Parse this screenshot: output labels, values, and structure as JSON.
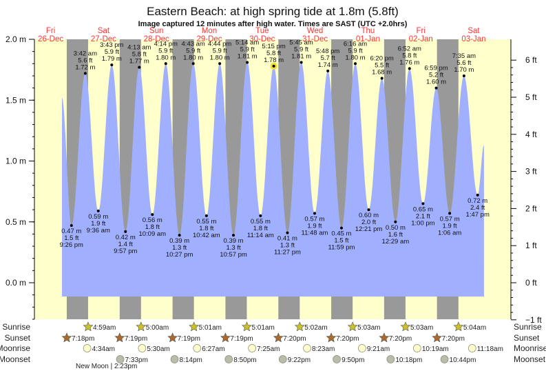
{
  "title": "Eastern Beach: at high  spring tide at 1.8m (5.8ft)",
  "subtitle": "Image captured 12 minutes after high water. Times are SAST (UTC +2.0hrs)",
  "colors": {
    "day": "#ffffcc",
    "night": "#999999",
    "tide": "#a0b0ff",
    "dayLabel": "#ff3333",
    "sunrise": "#c8c030",
    "sunset": "#a86a30",
    "moonrise": "#ffffcc",
    "moonset": "#bbbbaa",
    "highlight": "#f0e020"
  },
  "row_labels": {
    "sunrise": "Sunrise",
    "sunset": "Sunset",
    "moonrise": "Moonrise",
    "moonset": "Moonset"
  },
  "new_moon": "New Moon | 2:23pm",
  "chart_data": {
    "type": "area",
    "title": "Eastern Beach: at high  spring tide at 1.8m (5.8ft)",
    "ylabel_left": "m",
    "ylabel_right": "ft",
    "ylim_m": [
      -0.305,
      2.0
    ],
    "left_ticks": [
      "2.0 m",
      "1.5 m",
      "1.0 m",
      "0.5 m",
      "0.0 m"
    ],
    "left_tick_values": [
      2.0,
      1.5,
      1.0,
      0.5,
      0.0
    ],
    "right_ticks": [
      "6 ft",
      "5 ft",
      "4 ft",
      "3 ft",
      "2 ft",
      "1 ft",
      "0 ft",
      "−1 ft"
    ],
    "right_tick_values": [
      6,
      5,
      4,
      3,
      2,
      1,
      0,
      -1
    ],
    "days": [
      {
        "dow": "Fri",
        "date": "26-Dec"
      },
      {
        "dow": "Sat",
        "date": "27-Dec"
      },
      {
        "dow": "Sun",
        "date": "28-Dec"
      },
      {
        "dow": "Mon",
        "date": "29-Dec"
      },
      {
        "dow": "Tue",
        "date": "30-Dec"
      },
      {
        "dow": "Wed",
        "date": "31-Dec"
      },
      {
        "dow": "Thu",
        "date": "01-Jan"
      },
      {
        "dow": "Fri",
        "date": "02-Jan"
      },
      {
        "dow": "Sat",
        "date": "03-Jan"
      }
    ],
    "series_start": {
      "day": 0,
      "time": "5:07pm",
      "m": 1.52
    },
    "series_end": {
      "day": 8,
      "time": "4:40pm",
      "m": 1.13
    },
    "current_index": 15,
    "tides": [
      {
        "type": "low",
        "day": 0,
        "time": "9:26 pm",
        "m": "0.47",
        "ft": "1.5"
      },
      {
        "type": "high",
        "day": 1,
        "time": "3:42 am",
        "m": "1.72",
        "ft": "5.6"
      },
      {
        "type": "low",
        "day": 1,
        "time": "9:36 am",
        "m": "0.59",
        "ft": "1.9"
      },
      {
        "type": "high",
        "day": 1,
        "time": "3:43 pm",
        "m": "1.79",
        "ft": "5.9"
      },
      {
        "type": "low",
        "day": 1,
        "time": "9:57 pm",
        "m": "0.42",
        "ft": "1.4"
      },
      {
        "type": "high",
        "day": 2,
        "time": "4:13 am",
        "m": "1.77",
        "ft": "5.8"
      },
      {
        "type": "low",
        "day": 2,
        "time": "10:09 am",
        "m": "0.56",
        "ft": "1.8"
      },
      {
        "type": "high",
        "day": 2,
        "time": "4:14 pm",
        "m": "1.80",
        "ft": "5.9"
      },
      {
        "type": "low",
        "day": 2,
        "time": "10:27 pm",
        "m": "0.39",
        "ft": "1.3"
      },
      {
        "type": "high",
        "day": 3,
        "time": "4:43 am",
        "m": "1.80",
        "ft": "5.9"
      },
      {
        "type": "low",
        "day": 3,
        "time": "10:42 am",
        "m": "0.55",
        "ft": "1.8"
      },
      {
        "type": "high",
        "day": 3,
        "time": "4:44 pm",
        "m": "1.80",
        "ft": "5.9"
      },
      {
        "type": "low",
        "day": 3,
        "time": "10:57 pm",
        "m": "0.39",
        "ft": "1.3"
      },
      {
        "type": "high",
        "day": 4,
        "time": "5:14 am",
        "m": "1.81",
        "ft": "5.9"
      },
      {
        "type": "low",
        "day": 4,
        "time": "11:14 am",
        "m": "0.55",
        "ft": "1.8"
      },
      {
        "type": "high",
        "day": 4,
        "time": "5:15 pm",
        "m": "1.78",
        "ft": "5.8"
      },
      {
        "type": "low",
        "day": 4,
        "time": "11:27 pm",
        "m": "0.41",
        "ft": "1.3"
      },
      {
        "type": "high",
        "day": 5,
        "time": "5:45 am",
        "m": "1.81",
        "ft": "5.9"
      },
      {
        "type": "low",
        "day": 5,
        "time": "11:48 am",
        "m": "0.57",
        "ft": "1.9"
      },
      {
        "type": "high",
        "day": 5,
        "time": "5:48 pm",
        "m": "1.74",
        "ft": "5.7"
      },
      {
        "type": "low",
        "day": 5,
        "time": "11:59 pm",
        "m": "0.45",
        "ft": "1.5"
      },
      {
        "type": "high",
        "day": 6,
        "time": "6:16 am",
        "m": "1.80",
        "ft": "5.9"
      },
      {
        "type": "low",
        "day": 6,
        "time": "12:21 pm",
        "m": "0.60",
        "ft": "2.0"
      },
      {
        "type": "high",
        "day": 6,
        "time": "6:20 pm",
        "m": "1.68",
        "ft": "5.5"
      },
      {
        "type": "low",
        "day": 7,
        "time": "12:29 am",
        "m": "0.50",
        "ft": "1.6"
      },
      {
        "type": "high",
        "day": 7,
        "time": "6:52 am",
        "m": "1.76",
        "ft": "5.8"
      },
      {
        "type": "low",
        "day": 7,
        "time": "1:00 pm",
        "m": "0.65",
        "ft": "2.1"
      },
      {
        "type": "high",
        "day": 7,
        "time": "6:59 pm",
        "m": "1.60",
        "ft": "5.2"
      },
      {
        "type": "low",
        "day": 8,
        "time": "1:06 am",
        "m": "0.57",
        "ft": "1.9"
      },
      {
        "type": "high",
        "day": 8,
        "time": "7:35 am",
        "m": "1.70",
        "ft": "5.6"
      },
      {
        "type": "low",
        "day": 8,
        "time": "1:47 pm",
        "m": "0.72",
        "ft": "2.4"
      }
    ],
    "sunrise": [
      {
        "day": 1,
        "time": "4:59am"
      },
      {
        "day": 2,
        "time": "5:00am"
      },
      {
        "day": 3,
        "time": "5:01am"
      },
      {
        "day": 4,
        "time": "5:01am"
      },
      {
        "day": 5,
        "time": "5:02am"
      },
      {
        "day": 6,
        "time": "5:03am"
      },
      {
        "day": 7,
        "time": "5:03am"
      },
      {
        "day": 8,
        "time": "5:04am"
      }
    ],
    "sunset": [
      {
        "day": 0,
        "time": "7:18pm"
      },
      {
        "day": 1,
        "time": "7:19pm"
      },
      {
        "day": 2,
        "time": "7:19pm"
      },
      {
        "day": 3,
        "time": "7:19pm"
      },
      {
        "day": 4,
        "time": "7:20pm"
      },
      {
        "day": 5,
        "time": "7:20pm"
      },
      {
        "day": 6,
        "time": "7:20pm"
      },
      {
        "day": 7,
        "time": "7:20pm"
      }
    ],
    "moonrise": [
      {
        "day": 1,
        "time": "4:34am"
      },
      {
        "day": 2,
        "time": "5:30am"
      },
      {
        "day": 3,
        "time": "6:27am"
      },
      {
        "day": 4,
        "time": "7:25am"
      },
      {
        "day": 5,
        "time": "8:23am"
      },
      {
        "day": 6,
        "time": "9:21am"
      },
      {
        "day": 7,
        "time": "10:19am"
      },
      {
        "day": 8,
        "time": "11:18am"
      }
    ],
    "moonset": [
      {
        "day": 1,
        "time": "7:33pm"
      },
      {
        "day": 2,
        "time": "8:14pm"
      },
      {
        "day": 3,
        "time": "8:50pm"
      },
      {
        "day": 4,
        "time": "9:22pm"
      },
      {
        "day": 5,
        "time": "9:50pm"
      },
      {
        "day": 6,
        "time": "10:18pm"
      },
      {
        "day": 7,
        "time": "10:44pm"
      }
    ]
  }
}
